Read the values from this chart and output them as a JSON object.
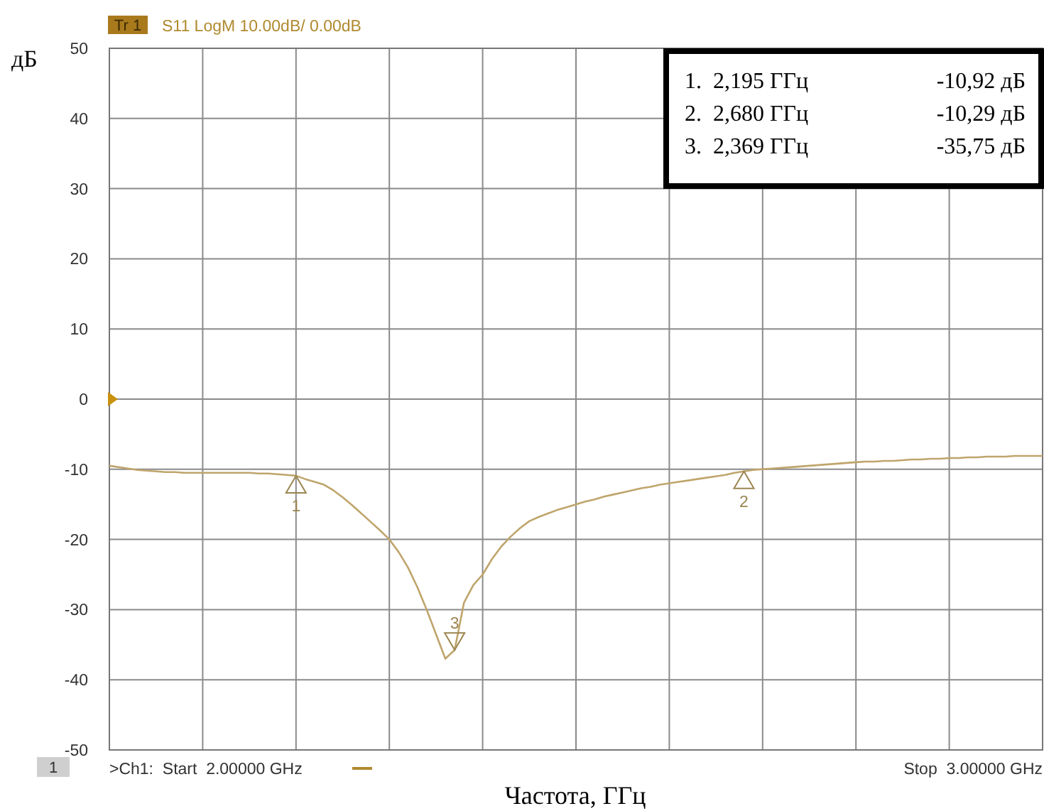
{
  "chart_data": {
    "type": "line",
    "ylabel": "дБ",
    "xlabel": "Частота, ГГц",
    "categories": [
      null,
      null,
      null,
      null,
      null,
      null,
      null,
      null,
      null,
      null,
      null,
      null,
      null,
      null,
      null,
      null,
      null,
      null,
      null,
      null,
      null,
      null,
      null,
      null,
      null,
      null,
      null,
      null,
      null,
      null,
      null,
      null,
      null,
      null,
      null,
      null,
      null,
      null,
      null,
      null,
      null,
      null,
      null,
      null,
      null,
      null,
      null,
      null,
      null,
      null,
      null,
      null,
      null,
      null,
      null,
      null,
      null,
      null,
      null,
      null,
      null,
      null,
      null,
      null,
      null,
      null,
      null,
      null,
      null,
      null,
      null,
      null,
      null,
      null,
      null,
      null,
      null,
      null,
      null,
      null,
      null,
      null,
      null,
      null,
      null,
      null,
      null,
      null,
      null,
      null,
      null,
      null,
      null,
      null,
      null,
      null,
      null,
      null,
      null,
      null,
      null
    ],
    "series": [
      {
        "color": "#bfa56c",
        "values": [
          -9.5,
          -9.7,
          -9.9,
          -10.1,
          -10.2,
          -10.3,
          -10.4,
          -10.4,
          -10.5,
          -10.5,
          -10.5,
          -10.5,
          -10.5,
          -10.5,
          -10.5,
          -10.5,
          -10.6,
          -10.6,
          -10.7,
          -10.8,
          -10.92,
          -11.4,
          -11.8,
          -12.2,
          -13,
          -14,
          -15.1,
          -16.3,
          -17.5,
          -18.7,
          -20,
          -21.8,
          -24,
          -26.8,
          -30,
          -33.5,
          -37,
          -35.75,
          -29,
          -26.5,
          -25,
          -22.8,
          -21,
          -19.6,
          -18.4,
          -17.4,
          -16.8,
          -16.3,
          -15.8,
          -15.4,
          -15,
          -14.6,
          -14.3,
          -13.9,
          -13.6,
          -13.3,
          -13,
          -12.7,
          -12.5,
          -12.2,
          -12,
          -11.8,
          -11.6,
          -11.4,
          -11.2,
          -11,
          -10.8,
          -10.5,
          -10.29,
          -10.1,
          -10,
          -9.9,
          -9.8,
          -9.7,
          -9.6,
          -9.5,
          -9.4,
          -9.3,
          -9.2,
          -9.1,
          -9,
          -8.9,
          -8.9,
          -8.8,
          -8.8,
          -8.7,
          -8.6,
          -8.6,
          -8.5,
          -8.5,
          -8.4,
          -8.4,
          -8.3,
          -8.3,
          -8.2,
          -8.2,
          -8.2,
          -8.1,
          -8.1,
          -8.1,
          -8.1
        ]
      }
    ],
    "ylim": [
      -50,
      50
    ],
    "yticks": [
      -50,
      -40,
      -30,
      -20,
      -10,
      0,
      10,
      20,
      30,
      40,
      50
    ],
    "grid": true,
    "marker": "none",
    "line_style": "solid",
    "annotations": [
      "Tr 1",
      "S11 LogM 10.00dB/ 0.00dB",
      "1",
      ">Ch1:  Start  2.00000 GHz",
      "Stop  3.00000 GHz",
      "1.  2,195 ГГц     -10,92 дБ",
      "2.  2,680 ГГц     -10,29 дБ",
      "3.  2,369 ГГц     -35,75 дБ",
      {
        "text": "1",
        "y": -10.92
      },
      {
        "text": "2",
        "y": -10.29
      },
      {
        "text": "3",
        "y": -35.75
      }
    ]
  }
}
